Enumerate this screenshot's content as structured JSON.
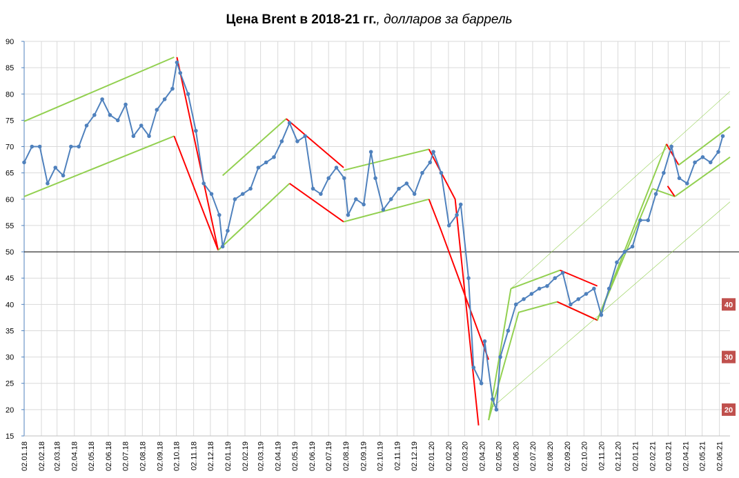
{
  "chart_data": {
    "type": "line",
    "title": "Цена Brent в 2018-21 гг.",
    "title_suffix": ", долларов за баррель",
    "xlim": [
      "02.01.18",
      "21.06.21"
    ],
    "xticks": [
      "02.01.18",
      "02.02.18",
      "02.03.18",
      "02.04.18",
      "02.05.18",
      "02.06.18",
      "02.07.18",
      "02.08.18",
      "02.09.18",
      "02.10.18",
      "02.11.18",
      "02.12.18",
      "02.01.19",
      "02.02.19",
      "02.03.19",
      "02.04.19",
      "02.05.19",
      "02.06.19",
      "02.07.19",
      "02.08.19",
      "02.09.19",
      "02.10.19",
      "02.11.19",
      "02.12.19",
      "02.01.20",
      "02.02.20",
      "02.03.20",
      "02.04.20",
      "02.05.20",
      "02.06.20",
      "02.07.20",
      "02.08.20",
      "02.09.20",
      "02.10.20",
      "02.11.20",
      "02.12.20",
      "02.01.21",
      "02.02.21",
      "02.03.21",
      "02.04.21",
      "02.05.21",
      "02.06.21"
    ],
    "ylim": [
      15,
      90
    ],
    "yticks": [
      15,
      20,
      25,
      30,
      35,
      40,
      45,
      50,
      55,
      60,
      65,
      70,
      75,
      80,
      85,
      90
    ],
    "grid": true,
    "reference_line": 50,
    "right_labels": [
      40,
      30,
      20
    ],
    "series": [
      {
        "color": "#4f81bd",
        "x": [
          "02.01.18",
          "16.01.18",
          "30.01.18",
          "13.02.18",
          "27.02.18",
          "13.03.18",
          "27.03.18",
          "10.04.18",
          "24.04.18",
          "08.05.18",
          "22.05.18",
          "05.06.18",
          "19.06.18",
          "03.07.18",
          "17.07.18",
          "31.07.18",
          "14.08.18",
          "28.08.18",
          "11.09.18",
          "25.09.18",
          "03.10.18",
          "09.10.18",
          "23.10.18",
          "06.11.18",
          "20.11.18",
          "04.12.18",
          "18.12.18",
          "24.12.18",
          "02.01.19",
          "15.01.19",
          "29.01.19",
          "12.02.19",
          "26.02.19",
          "12.03.19",
          "26.03.19",
          "09.04.19",
          "23.04.19",
          "07.05.19",
          "21.05.19",
          "04.06.19",
          "18.06.19",
          "02.07.19",
          "16.07.19",
          "30.07.19",
          "06.08.19",
          "20.08.19",
          "03.09.19",
          "16.09.19",
          "24.09.19",
          "08.10.19",
          "22.10.19",
          "05.11.19",
          "19.11.19",
          "03.12.19",
          "17.12.19",
          "31.12.19",
          "06.01.20",
          "20.01.20",
          "03.02.20",
          "17.02.20",
          "24.02.20",
          "09.03.20",
          "18.03.20",
          "01.04.20",
          "07.04.20",
          "21.04.20",
          "28.04.20",
          "05.05.20",
          "19.05.20",
          "02.06.20",
          "16.06.20",
          "30.06.20",
          "14.07.20",
          "28.07.20",
          "11.08.20",
          "25.08.20",
          "08.09.20",
          "22.09.20",
          "06.10.20",
          "20.10.20",
          "02.11.20",
          "16.11.20",
          "30.11.20",
          "14.12.20",
          "28.12.20",
          "11.01.21",
          "25.01.21",
          "08.02.21",
          "22.02.21",
          "08.03.21",
          "22.03.21",
          "05.04.21",
          "19.04.21",
          "03.05.21",
          "17.05.21",
          "31.05.21",
          "08.06.21"
        ],
        "values": [
          67,
          70,
          70,
          63,
          66,
          64.5,
          70,
          70,
          74,
          76,
          79,
          76,
          75,
          78,
          72,
          74,
          72,
          77,
          79,
          81,
          86,
          84,
          80,
          73,
          63,
          61,
          57,
          51,
          54,
          60,
          61,
          62,
          66,
          67,
          68,
          71,
          74.5,
          71,
          72,
          62,
          61,
          64,
          66,
          64,
          57,
          60,
          59,
          69,
          64,
          58,
          60,
          62,
          63,
          61,
          65,
          67,
          69,
          65,
          55,
          57,
          59,
          45,
          28,
          25,
          33,
          22,
          20,
          30,
          35,
          40,
          41,
          42,
          43,
          43.5,
          45,
          46,
          40,
          41,
          42,
          43,
          38,
          43,
          48,
          50,
          51,
          56,
          56,
          61,
          65,
          70,
          64,
          63,
          67,
          68,
          67,
          69,
          72
        ]
      }
    ],
    "trend_lines": [
      {
        "color": "#92d050",
        "width": 2,
        "x": [
          "02.01.18",
          "28.09.18"
        ],
        "values": [
          74.8,
          87
        ]
      },
      {
        "color": "#92d050",
        "width": 2,
        "x": [
          "02.01.18",
          "28.09.18"
        ],
        "values": [
          60.5,
          72
        ]
      },
      {
        "color": "#ff0000",
        "width": 2,
        "x": [
          "03.10.18",
          "16.12.18"
        ],
        "values": [
          87,
          50.3
        ]
      },
      {
        "color": "#ff0000",
        "width": 2,
        "x": [
          "28.09.18",
          "16.12.18"
        ],
        "values": [
          72,
          50.3
        ]
      },
      {
        "color": "#92d050",
        "width": 2,
        "x": [
          "24.12.18",
          "17.04.19"
        ],
        "values": [
          64.5,
          75.3
        ]
      },
      {
        "color": "#92d050",
        "width": 2,
        "x": [
          "16.12.18",
          "23.04.19"
        ],
        "values": [
          50.3,
          63
        ]
      },
      {
        "color": "#ff0000",
        "width": 2,
        "x": [
          "17.04.19",
          "29.07.19"
        ],
        "values": [
          75.3,
          66
        ]
      },
      {
        "color": "#ff0000",
        "width": 2,
        "x": [
          "23.04.19",
          "29.07.19"
        ],
        "values": [
          63,
          55.7
        ]
      },
      {
        "color": "#92d050",
        "width": 2,
        "x": [
          "29.07.19",
          "29.12.19"
        ],
        "values": [
          65.5,
          69.5
        ]
      },
      {
        "color": "#92d050",
        "width": 2,
        "x": [
          "29.07.19",
          "29.12.19"
        ],
        "values": [
          55.7,
          60
        ]
      },
      {
        "color": "#ff0000",
        "width": 2,
        "x": [
          "29.12.19",
          "14.02.20",
          "27.03.20"
        ],
        "values": [
          69.5,
          60,
          17
        ]
      },
      {
        "color": "#ff0000",
        "width": 2,
        "x": [
          "29.12.19",
          "20.01.20",
          "14.04.20"
        ],
        "values": [
          60,
          54,
          29.5
        ]
      },
      {
        "color": "#92d050",
        "width": 2,
        "x": [
          "14.04.20",
          "24.05.20"
        ],
        "values": [
          18,
          43
        ]
      },
      {
        "color": "#92d050",
        "width": 2,
        "x": [
          "14.04.20",
          "07.06.20",
          "15.08.20",
          "26.10.20",
          "02.02.21"
        ],
        "values": [
          18,
          38.5,
          40.5,
          37,
          62
        ]
      },
      {
        "color": "#92d050",
        "width": 2,
        "x": [
          "24.05.20",
          "20.08.20"
        ],
        "values": [
          43,
          46.5
        ]
      },
      {
        "color": "#ff0000",
        "width": 2,
        "x": [
          "20.08.20",
          "26.10.20"
        ],
        "values": [
          46.5,
          43.5
        ]
      },
      {
        "color": "#ff0000",
        "width": 2,
        "x": [
          "15.08.20",
          "26.10.20"
        ],
        "values": [
          40.5,
          37
        ]
      },
      {
        "color": "#92d050",
        "width": 2,
        "x": [
          "26.10.20",
          "27.02.21"
        ],
        "values": [
          37,
          70.5
        ]
      },
      {
        "color": "#92d050",
        "width": 2,
        "x": [
          "02.02.21",
          "14.03.21"
        ],
        "values": [
          62,
          60.5
        ]
      },
      {
        "color": "#ff0000",
        "width": 2,
        "x": [
          "27.02.21",
          "21.03.21"
        ],
        "values": [
          70.5,
          66.5
        ]
      },
      {
        "color": "#ff0000",
        "width": 2,
        "x": [
          "01.03.21",
          "14.03.21"
        ],
        "values": [
          62.5,
          60.5
        ]
      },
      {
        "color": "#92d050",
        "width": 2,
        "x": [
          "21.03.21",
          "21.06.21"
        ],
        "values": [
          66.5,
          73.8
        ]
      },
      {
        "color": "#92d050",
        "width": 2,
        "x": [
          "14.03.21",
          "21.06.21"
        ],
        "values": [
          60.5,
          68
        ]
      },
      {
        "color": "#92d050",
        "width": 0.6,
        "x": [
          "24.05.20",
          "21.06.21"
        ],
        "values": [
          43,
          80.5
        ]
      },
      {
        "color": "#92d050",
        "width": 0.6,
        "x": [
          "16.04.20",
          "21.06.21"
        ],
        "values": [
          20,
          59.5
        ]
      }
    ]
  }
}
